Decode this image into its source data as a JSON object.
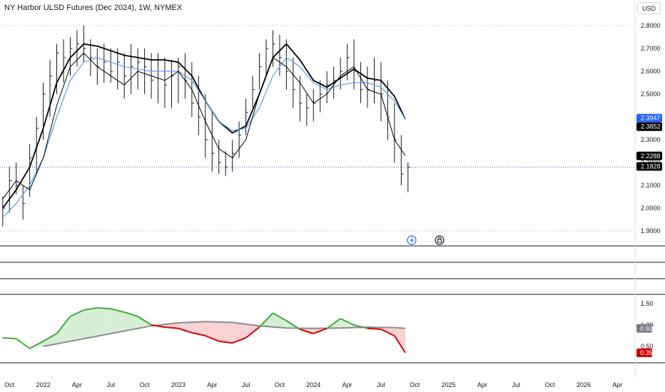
{
  "header": {
    "title": "NY Harbor ULSD Futures (Dec 2024), 1W, NYMEX",
    "currency": "USD"
  },
  "events": {
    "dividend_icon": "lightning-icon",
    "earnings_icon": "lock-clock-icon"
  },
  "colors": {
    "price_bars": "#131722",
    "ma_black": "#000000",
    "ma_blue": "#5b9cf6",
    "osc_up": "#3faa3c",
    "osc_down": "#d50000",
    "osc_signal": "#8c8c8c",
    "fill_up": "#d8efd7",
    "fill_down": "#f8d2d4",
    "badge_blue": "#2962ff",
    "badge_black": "#000000",
    "badge_gray": "#787b86",
    "badge_red": "#d50000"
  },
  "chart_data": [
    {
      "type": "line",
      "panel": "price",
      "ylim": [
        1.88,
        2.84
      ],
      "yticks": [
        "1.9000",
        "2.0000",
        "2.1000",
        "2.2000",
        "2.3000",
        "2.4000",
        "2.5000",
        "2.6000",
        "2.7000",
        "2.8000"
      ],
      "xlim": [
        2021.68,
        2026.37
      ],
      "xticks": [
        {
          "x": 2021.75,
          "label": "Oct"
        },
        {
          "x": 2022.0,
          "label": "2022"
        },
        {
          "x": 2022.25,
          "label": "Apr"
        },
        {
          "x": 2022.5,
          "label": "Jul"
        },
        {
          "x": 2022.75,
          "label": "Oct"
        },
        {
          "x": 2023.0,
          "label": "2023"
        },
        {
          "x": 2023.25,
          "label": "Apr"
        },
        {
          "x": 2023.5,
          "label": "Jul"
        },
        {
          "x": 2023.75,
          "label": "Oct"
        },
        {
          "x": 2024.0,
          "label": "2024"
        },
        {
          "x": 2024.25,
          "label": "Apr"
        },
        {
          "x": 2024.5,
          "label": "Jul"
        },
        {
          "x": 2024.75,
          "label": "Oct"
        },
        {
          "x": 2025.0,
          "label": "2025"
        },
        {
          "x": 2025.25,
          "label": "Apr"
        },
        {
          "x": 2025.5,
          "label": "Jul"
        },
        {
          "x": 2025.75,
          "label": "Oct"
        },
        {
          "x": 2026.0,
          "label": "2026"
        },
        {
          "x": 2026.25,
          "label": "Apr"
        }
      ],
      "grid_levels": [
        1.9,
        2.18,
        2.8
      ],
      "price_bars": {
        "x": [
          2021.7,
          2021.75,
          2021.8,
          2021.85,
          2021.9,
          2021.95,
          2022.0,
          2022.05,
          2022.1,
          2022.15,
          2022.2,
          2022.25,
          2022.3,
          2022.35,
          2022.4,
          2022.45,
          2022.5,
          2022.55,
          2022.6,
          2022.65,
          2022.7,
          2022.75,
          2022.8,
          2022.85,
          2022.9,
          2022.95,
          2023.0,
          2023.05,
          2023.1,
          2023.15,
          2023.2,
          2023.25,
          2023.3,
          2023.35,
          2023.4,
          2023.45,
          2023.5,
          2023.55,
          2023.6,
          2023.65,
          2023.7,
          2023.75,
          2023.8,
          2023.85,
          2023.9,
          2023.95,
          2024.0,
          2024.05,
          2024.1,
          2024.15,
          2024.2,
          2024.25,
          2024.3,
          2024.35,
          2024.4,
          2024.45,
          2024.5,
          2024.55,
          2024.6,
          2024.65,
          2024.7
        ],
        "high": [
          2.05,
          2.18,
          2.2,
          2.1,
          2.28,
          2.4,
          2.55,
          2.65,
          2.72,
          2.74,
          2.75,
          2.78,
          2.8,
          2.74,
          2.7,
          2.72,
          2.7,
          2.7,
          2.68,
          2.72,
          2.7,
          2.7,
          2.68,
          2.68,
          2.66,
          2.65,
          2.66,
          2.68,
          2.64,
          2.58,
          2.5,
          2.42,
          2.3,
          2.25,
          2.3,
          2.38,
          2.48,
          2.58,
          2.68,
          2.74,
          2.78,
          2.76,
          2.74,
          2.66,
          2.58,
          2.5,
          2.52,
          2.56,
          2.6,
          2.62,
          2.66,
          2.72,
          2.74,
          2.64,
          2.62,
          2.66,
          2.64,
          2.56,
          2.46,
          2.32,
          2.2
        ],
        "low": [
          1.92,
          1.98,
          2.06,
          1.95,
          2.05,
          2.15,
          2.3,
          2.4,
          2.5,
          2.55,
          2.58,
          2.62,
          2.64,
          2.58,
          2.54,
          2.55,
          2.55,
          2.52,
          2.48,
          2.5,
          2.52,
          2.5,
          2.48,
          2.46,
          2.44,
          2.44,
          2.46,
          2.48,
          2.4,
          2.32,
          2.22,
          2.16,
          2.15,
          2.14,
          2.16,
          2.22,
          2.32,
          2.44,
          2.52,
          2.58,
          2.62,
          2.58,
          2.52,
          2.44,
          2.38,
          2.36,
          2.38,
          2.42,
          2.46,
          2.48,
          2.52,
          2.56,
          2.52,
          2.46,
          2.44,
          2.46,
          2.38,
          2.3,
          2.2,
          2.1,
          2.07
        ],
        "close": [
          2.0,
          2.12,
          2.1,
          2.02,
          2.22,
          2.35,
          2.5,
          2.58,
          2.68,
          2.66,
          2.7,
          2.72,
          2.7,
          2.66,
          2.62,
          2.64,
          2.6,
          2.64,
          2.58,
          2.62,
          2.64,
          2.62,
          2.56,
          2.6,
          2.54,
          2.58,
          2.62,
          2.56,
          2.46,
          2.4,
          2.3,
          2.24,
          2.2,
          2.18,
          2.24,
          2.32,
          2.42,
          2.52,
          2.62,
          2.7,
          2.72,
          2.66,
          2.6,
          2.52,
          2.46,
          2.44,
          2.46,
          2.5,
          2.54,
          2.56,
          2.6,
          2.66,
          2.6,
          2.52,
          2.52,
          2.56,
          2.5,
          2.4,
          2.3,
          2.15,
          2.18
        ]
      },
      "series": [
        {
          "x": [
            2021.7,
            2021.8,
            2021.9,
            2022.0,
            2022.1,
            2022.2,
            2022.3,
            2022.4,
            2022.5,
            2022.6,
            2022.7,
            2022.8,
            2022.9,
            2023.0,
            2023.1,
            2023.2,
            2023.3,
            2023.4,
            2023.5,
            2023.6,
            2023.7,
            2023.8,
            2023.9,
            2024.0,
            2024.1,
            2024.2,
            2024.3,
            2024.4,
            2024.5,
            2024.6,
            2024.68
          ],
          "values": [
            2.0,
            2.08,
            2.18,
            2.35,
            2.55,
            2.66,
            2.72,
            2.71,
            2.69,
            2.67,
            2.66,
            2.65,
            2.65,
            2.64,
            2.58,
            2.47,
            2.38,
            2.33,
            2.36,
            2.5,
            2.66,
            2.72,
            2.65,
            2.56,
            2.53,
            2.57,
            2.61,
            2.57,
            2.56,
            2.49,
            2.39
          ]
        },
        {
          "x": [
            2021.7,
            2021.8,
            2021.9,
            2022.0,
            2022.1,
            2022.2,
            2022.3,
            2022.4,
            2022.5,
            2022.6,
            2022.7,
            2022.8,
            2022.9,
            2023.0,
            2023.1,
            2023.2,
            2023.3,
            2023.4,
            2023.5,
            2023.6,
            2023.7,
            2023.8,
            2023.9,
            2024.0,
            2024.1,
            2024.2,
            2024.3,
            2024.4,
            2024.5,
            2024.6,
            2024.68
          ],
          "values": [
            1.96,
            2.02,
            2.1,
            2.22,
            2.4,
            2.56,
            2.64,
            2.66,
            2.64,
            2.62,
            2.61,
            2.6,
            2.6,
            2.6,
            2.56,
            2.47,
            2.38,
            2.34,
            2.35,
            2.44,
            2.58,
            2.66,
            2.62,
            2.55,
            2.52,
            2.54,
            2.55,
            2.55,
            2.53,
            2.47,
            2.39
          ]
        },
        {
          "x": [
            2021.7,
            2021.8,
            2021.9,
            2022.0,
            2022.1,
            2022.2,
            2022.3,
            2022.4,
            2022.5,
            2022.6,
            2022.7,
            2022.8,
            2022.9,
            2023.0,
            2023.1,
            2023.2,
            2023.3,
            2023.4,
            2023.5,
            2023.6,
            2023.7,
            2023.8,
            2023.9,
            2024.0,
            2024.1,
            2024.2,
            2024.3,
            2024.4,
            2024.5,
            2024.6,
            2024.68
          ],
          "values": [
            2.04,
            2.12,
            2.08,
            2.22,
            2.45,
            2.62,
            2.68,
            2.62,
            2.58,
            2.54,
            2.6,
            2.58,
            2.56,
            2.6,
            2.52,
            2.38,
            2.26,
            2.22,
            2.3,
            2.5,
            2.66,
            2.62,
            2.55,
            2.46,
            2.5,
            2.58,
            2.62,
            2.52,
            2.5,
            2.3,
            2.23
          ]
        }
      ],
      "price_labels": [
        {
          "value": 2.3947,
          "text": "2.3947",
          "color": "#2962ff"
        },
        {
          "value": 2.3852,
          "text": "2.3852",
          "color": "#000000"
        },
        {
          "value": 2.2288,
          "text": "2.2288",
          "color": "#000000"
        },
        {
          "value": 2.1828,
          "text": "2.1828",
          "color": "#000000"
        }
      ]
    },
    {
      "type": "line",
      "panel": "oscillator",
      "ylim": [
        0.1,
        1.7
      ],
      "yticks": [
        "0.50",
        "1.00",
        "1.50"
      ],
      "series": [
        {
          "x": [
            2021.7,
            2021.8,
            2021.9,
            2022.0,
            2022.1,
            2022.2,
            2022.3,
            2022.4,
            2022.5,
            2022.6,
            2022.7,
            2022.8,
            2022.9,
            2023.0,
            2023.1,
            2023.2,
            2023.3,
            2023.4,
            2023.5,
            2023.6,
            2023.7,
            2023.8,
            2023.9,
            2024.0,
            2024.1,
            2024.2,
            2024.3,
            2024.4,
            2024.5,
            2024.6,
            2024.68
          ],
          "values": [
            0.7,
            0.68,
            0.45,
            0.62,
            0.8,
            1.2,
            1.35,
            1.4,
            1.38,
            1.3,
            1.2,
            1.0,
            0.95,
            0.92,
            0.82,
            0.75,
            0.62,
            0.58,
            0.7,
            0.95,
            1.28,
            1.1,
            0.9,
            0.8,
            0.92,
            1.15,
            1.0,
            0.92,
            0.9,
            0.75,
            0.35
          ]
        },
        {
          "x": [
            2022.0,
            2022.2,
            2022.4,
            2022.6,
            2022.8,
            2023.0,
            2023.2,
            2023.4,
            2023.6,
            2023.8,
            2024.0,
            2024.2,
            2024.4,
            2024.6,
            2024.68
          ],
          "values": [
            0.5,
            0.62,
            0.74,
            0.86,
            0.98,
            1.05,
            1.08,
            1.06,
            0.98,
            0.93,
            0.92,
            0.93,
            0.95,
            0.94,
            0.92
          ]
        }
      ],
      "value_labels": [
        {
          "value": 0.92,
          "text": "0.92",
          "color": "#787b86"
        },
        {
          "value": 0.35,
          "text": "0.35",
          "color": "#d50000"
        }
      ]
    }
  ]
}
